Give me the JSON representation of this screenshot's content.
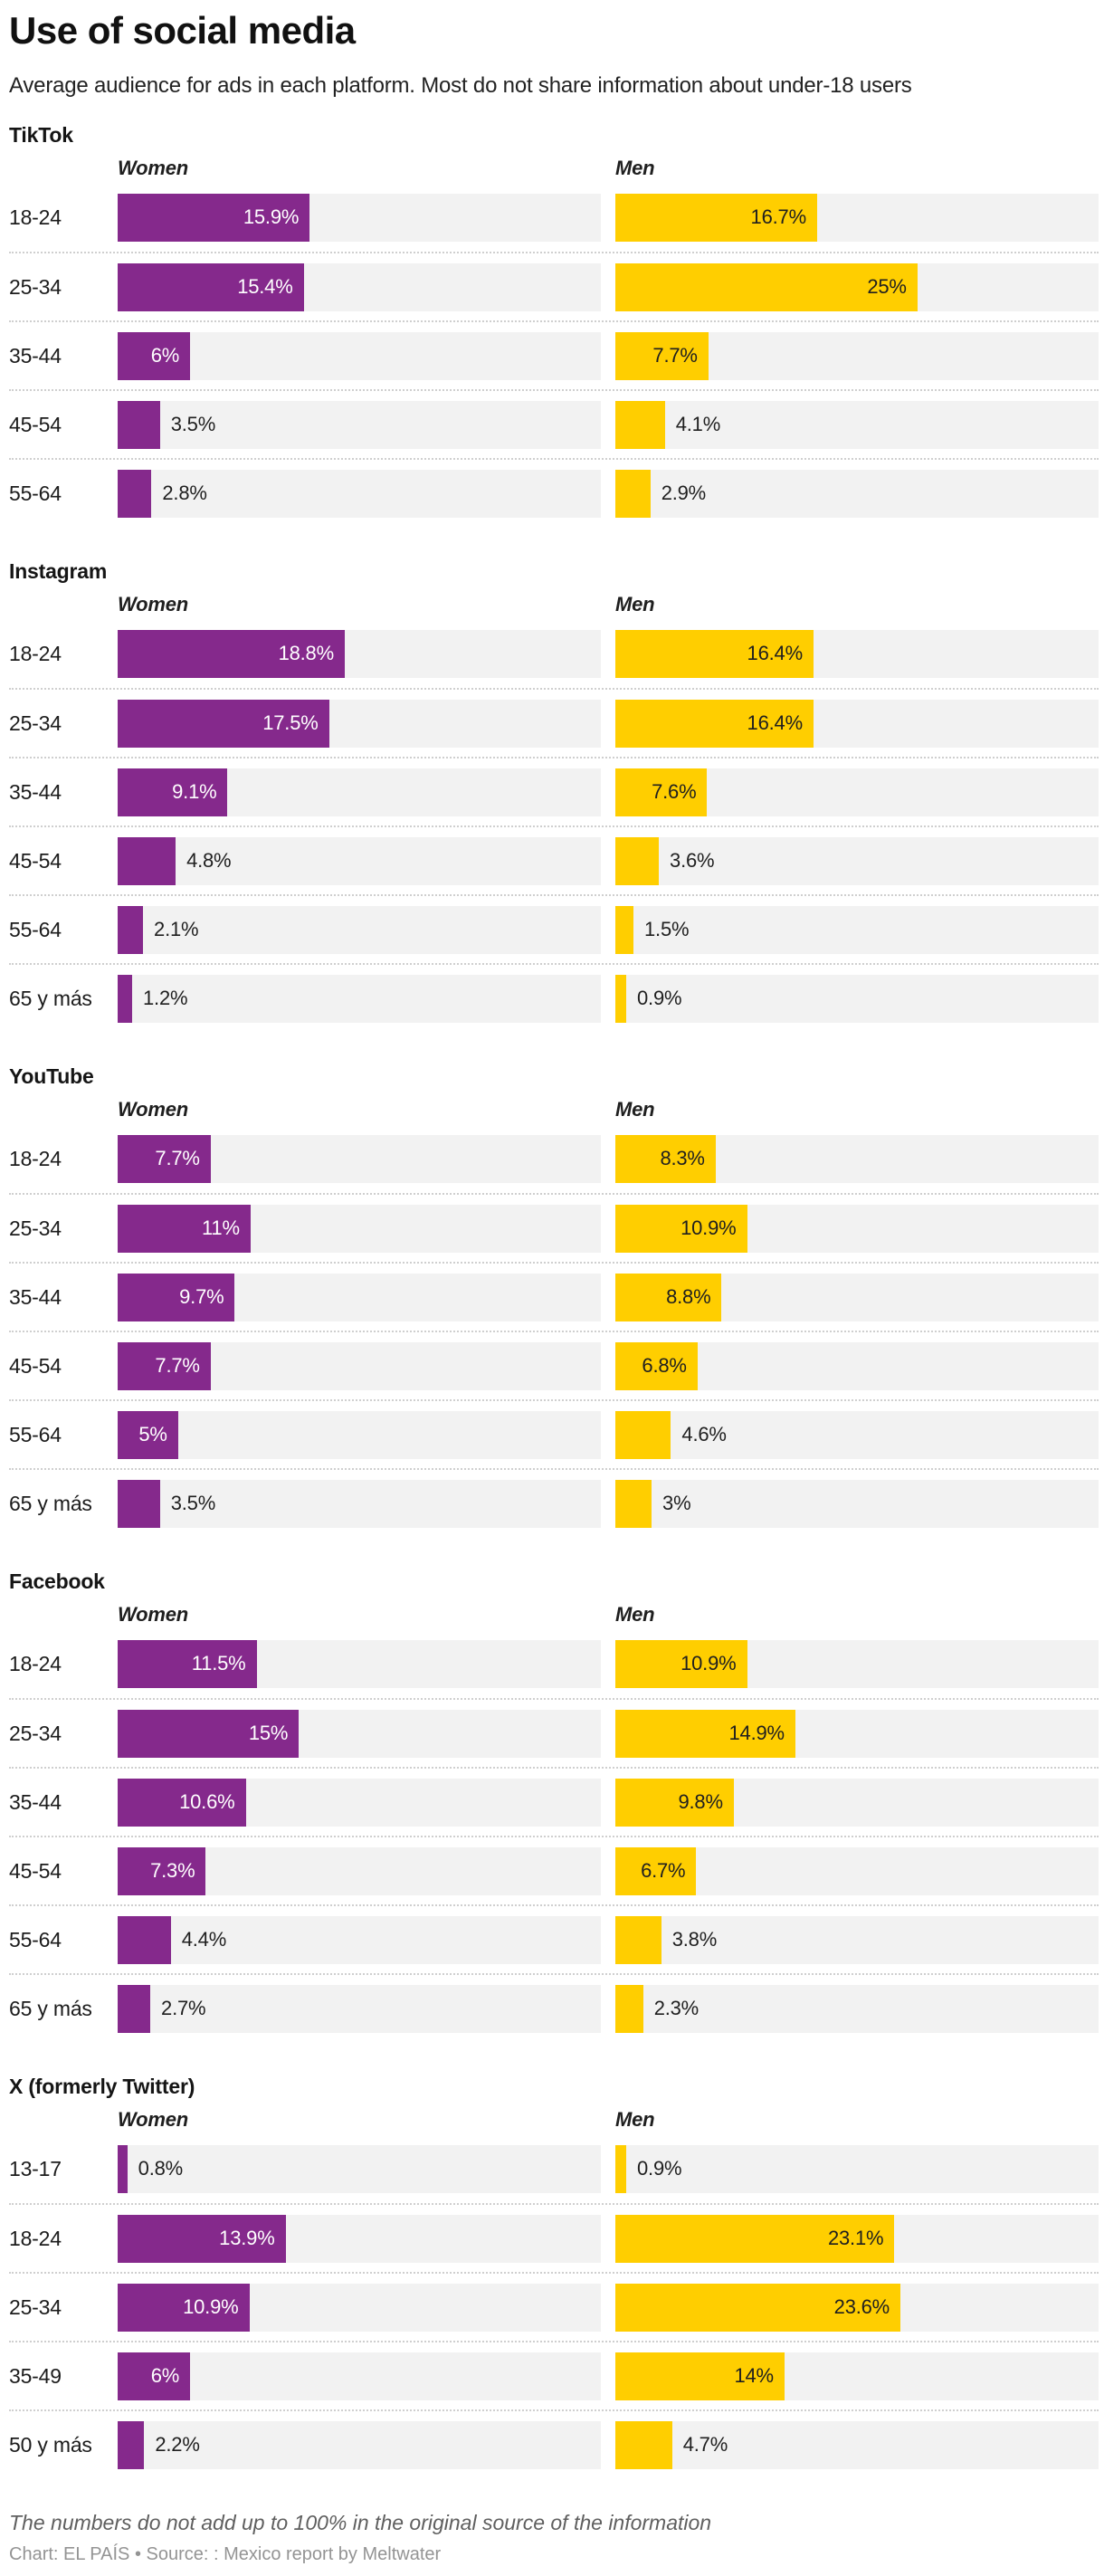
{
  "title": "Use of social media",
  "subtitle": "Average audience for ads in each platform. Most do not share information about under-18 users",
  "legend": {
    "women": "Women",
    "men": "Men"
  },
  "footnote": "The numbers do not add up to 100% in the original source of the information",
  "credit": "Chart: EL PAÍS • Source: : Mexico report by Meltwater",
  "colors": {
    "women_bar": "#85298C",
    "men_bar": "#FFCE00",
    "track": "#F2F2F2",
    "label_on_women": "#FFFFFF",
    "label_dark": "#1F1F1F",
    "separator": "#CFCFCF"
  },
  "chart_data": {
    "type": "bar",
    "orientation": "horizontal",
    "unit": "%",
    "axis_max": 40,
    "grid": false,
    "legend_position": "column-headers",
    "series_names": [
      "Women",
      "Men"
    ],
    "inside_label_threshold": 5,
    "platforms": [
      {
        "name": "TikTok",
        "categories": [
          "18-24",
          "25-34",
          "35-44",
          "45-54",
          "55-64"
        ],
        "women": [
          15.9,
          15.4,
          6,
          3.5,
          2.8
        ],
        "men": [
          16.7,
          25,
          7.7,
          4.1,
          2.9
        ]
      },
      {
        "name": "Instagram",
        "categories": [
          "18-24",
          "25-34",
          "35-44",
          "45-54",
          "55-64",
          "65 y más"
        ],
        "women": [
          18.8,
          17.5,
          9.1,
          4.8,
          2.1,
          1.2
        ],
        "men": [
          16.4,
          16.4,
          7.6,
          3.6,
          1.5,
          0.9
        ]
      },
      {
        "name": "YouTube",
        "categories": [
          "18-24",
          "25-34",
          "35-44",
          "45-54",
          "55-64",
          "65 y más"
        ],
        "women": [
          7.7,
          11,
          9.7,
          7.7,
          5,
          3.5
        ],
        "men": [
          8.3,
          10.9,
          8.8,
          6.8,
          4.6,
          3
        ]
      },
      {
        "name": "Facebook",
        "categories": [
          "18-24",
          "25-34",
          "35-44",
          "45-54",
          "55-64",
          "65 y más"
        ],
        "women": [
          11.5,
          15,
          10.6,
          7.3,
          4.4,
          2.7
        ],
        "men": [
          10.9,
          14.9,
          9.8,
          6.7,
          3.8,
          2.3
        ]
      },
      {
        "name": "X (formerly Twitter)",
        "categories": [
          "13-17",
          "18-24",
          "25-34",
          "35-49",
          "50 y más"
        ],
        "women": [
          0.8,
          13.9,
          10.9,
          6,
          2.2
        ],
        "men": [
          0.9,
          23.1,
          23.6,
          14,
          4.7
        ]
      }
    ]
  }
}
